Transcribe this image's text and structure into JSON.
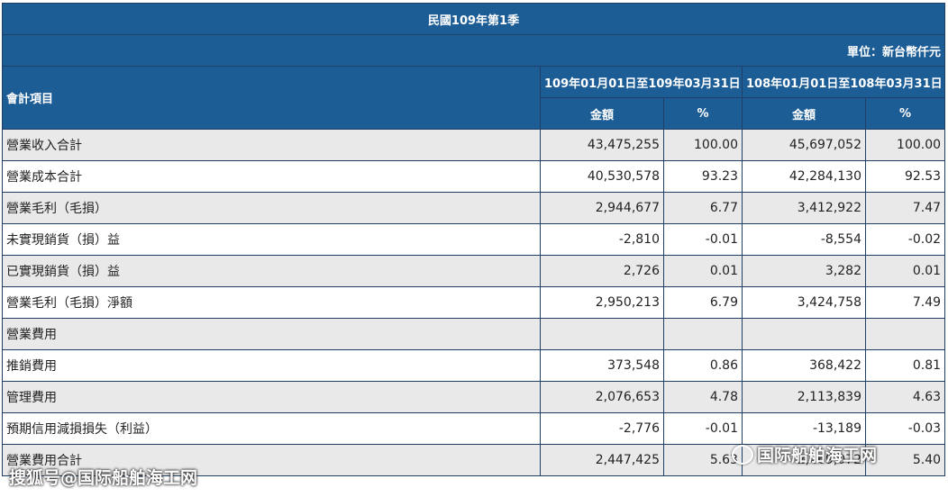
{
  "title": "民國109年第1季",
  "unit": "單位：新台幣仟元",
  "headers": {
    "item": "會計項目",
    "period1": "109年01月01日至109年03月31日",
    "period2": "108年01月01日至108年03月31日",
    "amount": "金額",
    "percent": "%"
  },
  "rows": [
    {
      "label": "營業收入合計",
      "a1": "43,475,255",
      "p1": "100.00",
      "a2": "45,697,052",
      "p2": "100.00"
    },
    {
      "label": "營業成本合計",
      "a1": "40,530,578",
      "p1": "93.23",
      "a2": "42,284,130",
      "p2": "92.53"
    },
    {
      "label": "營業毛利（毛損）",
      "a1": "2,944,677",
      "p1": "6.77",
      "a2": "3,412,922",
      "p2": "7.47"
    },
    {
      "label": "未實現銷貨（損）益",
      "a1": "-2,810",
      "p1": "-0.01",
      "a2": "-8,554",
      "p2": "-0.02"
    },
    {
      "label": "已實現銷貨（損）益",
      "a1": "2,726",
      "p1": "0.01",
      "a2": "3,282",
      "p2": "0.01"
    },
    {
      "label": "營業毛利（毛損）淨額",
      "a1": "2,950,213",
      "p1": "6.79",
      "a2": "3,424,758",
      "p2": "7.49"
    },
    {
      "label": "營業費用",
      "a1": "",
      "p1": "",
      "a2": "",
      "p2": ""
    },
    {
      "label": "推銷費用",
      "a1": "373,548",
      "p1": "0.86",
      "a2": "368,422",
      "p2": "0.81"
    },
    {
      "label": "管理費用",
      "a1": "2,076,653",
      "p1": "4.78",
      "a2": "2,113,839",
      "p2": "4.63"
    },
    {
      "label": "預期信用減損損失（利益）",
      "a1": "-2,776",
      "p1": "-0.01",
      "a2": "-13,189",
      "p2": "-0.03"
    },
    {
      "label": "營業費用合計",
      "a1": "2,447,425",
      "p1": "5.63",
      "a2": "2,469,072",
      "p2": "5.40"
    }
  ],
  "watermark": {
    "right": "国际船舶海工网",
    "left": "搜狐号@国际船舶海工网"
  }
}
